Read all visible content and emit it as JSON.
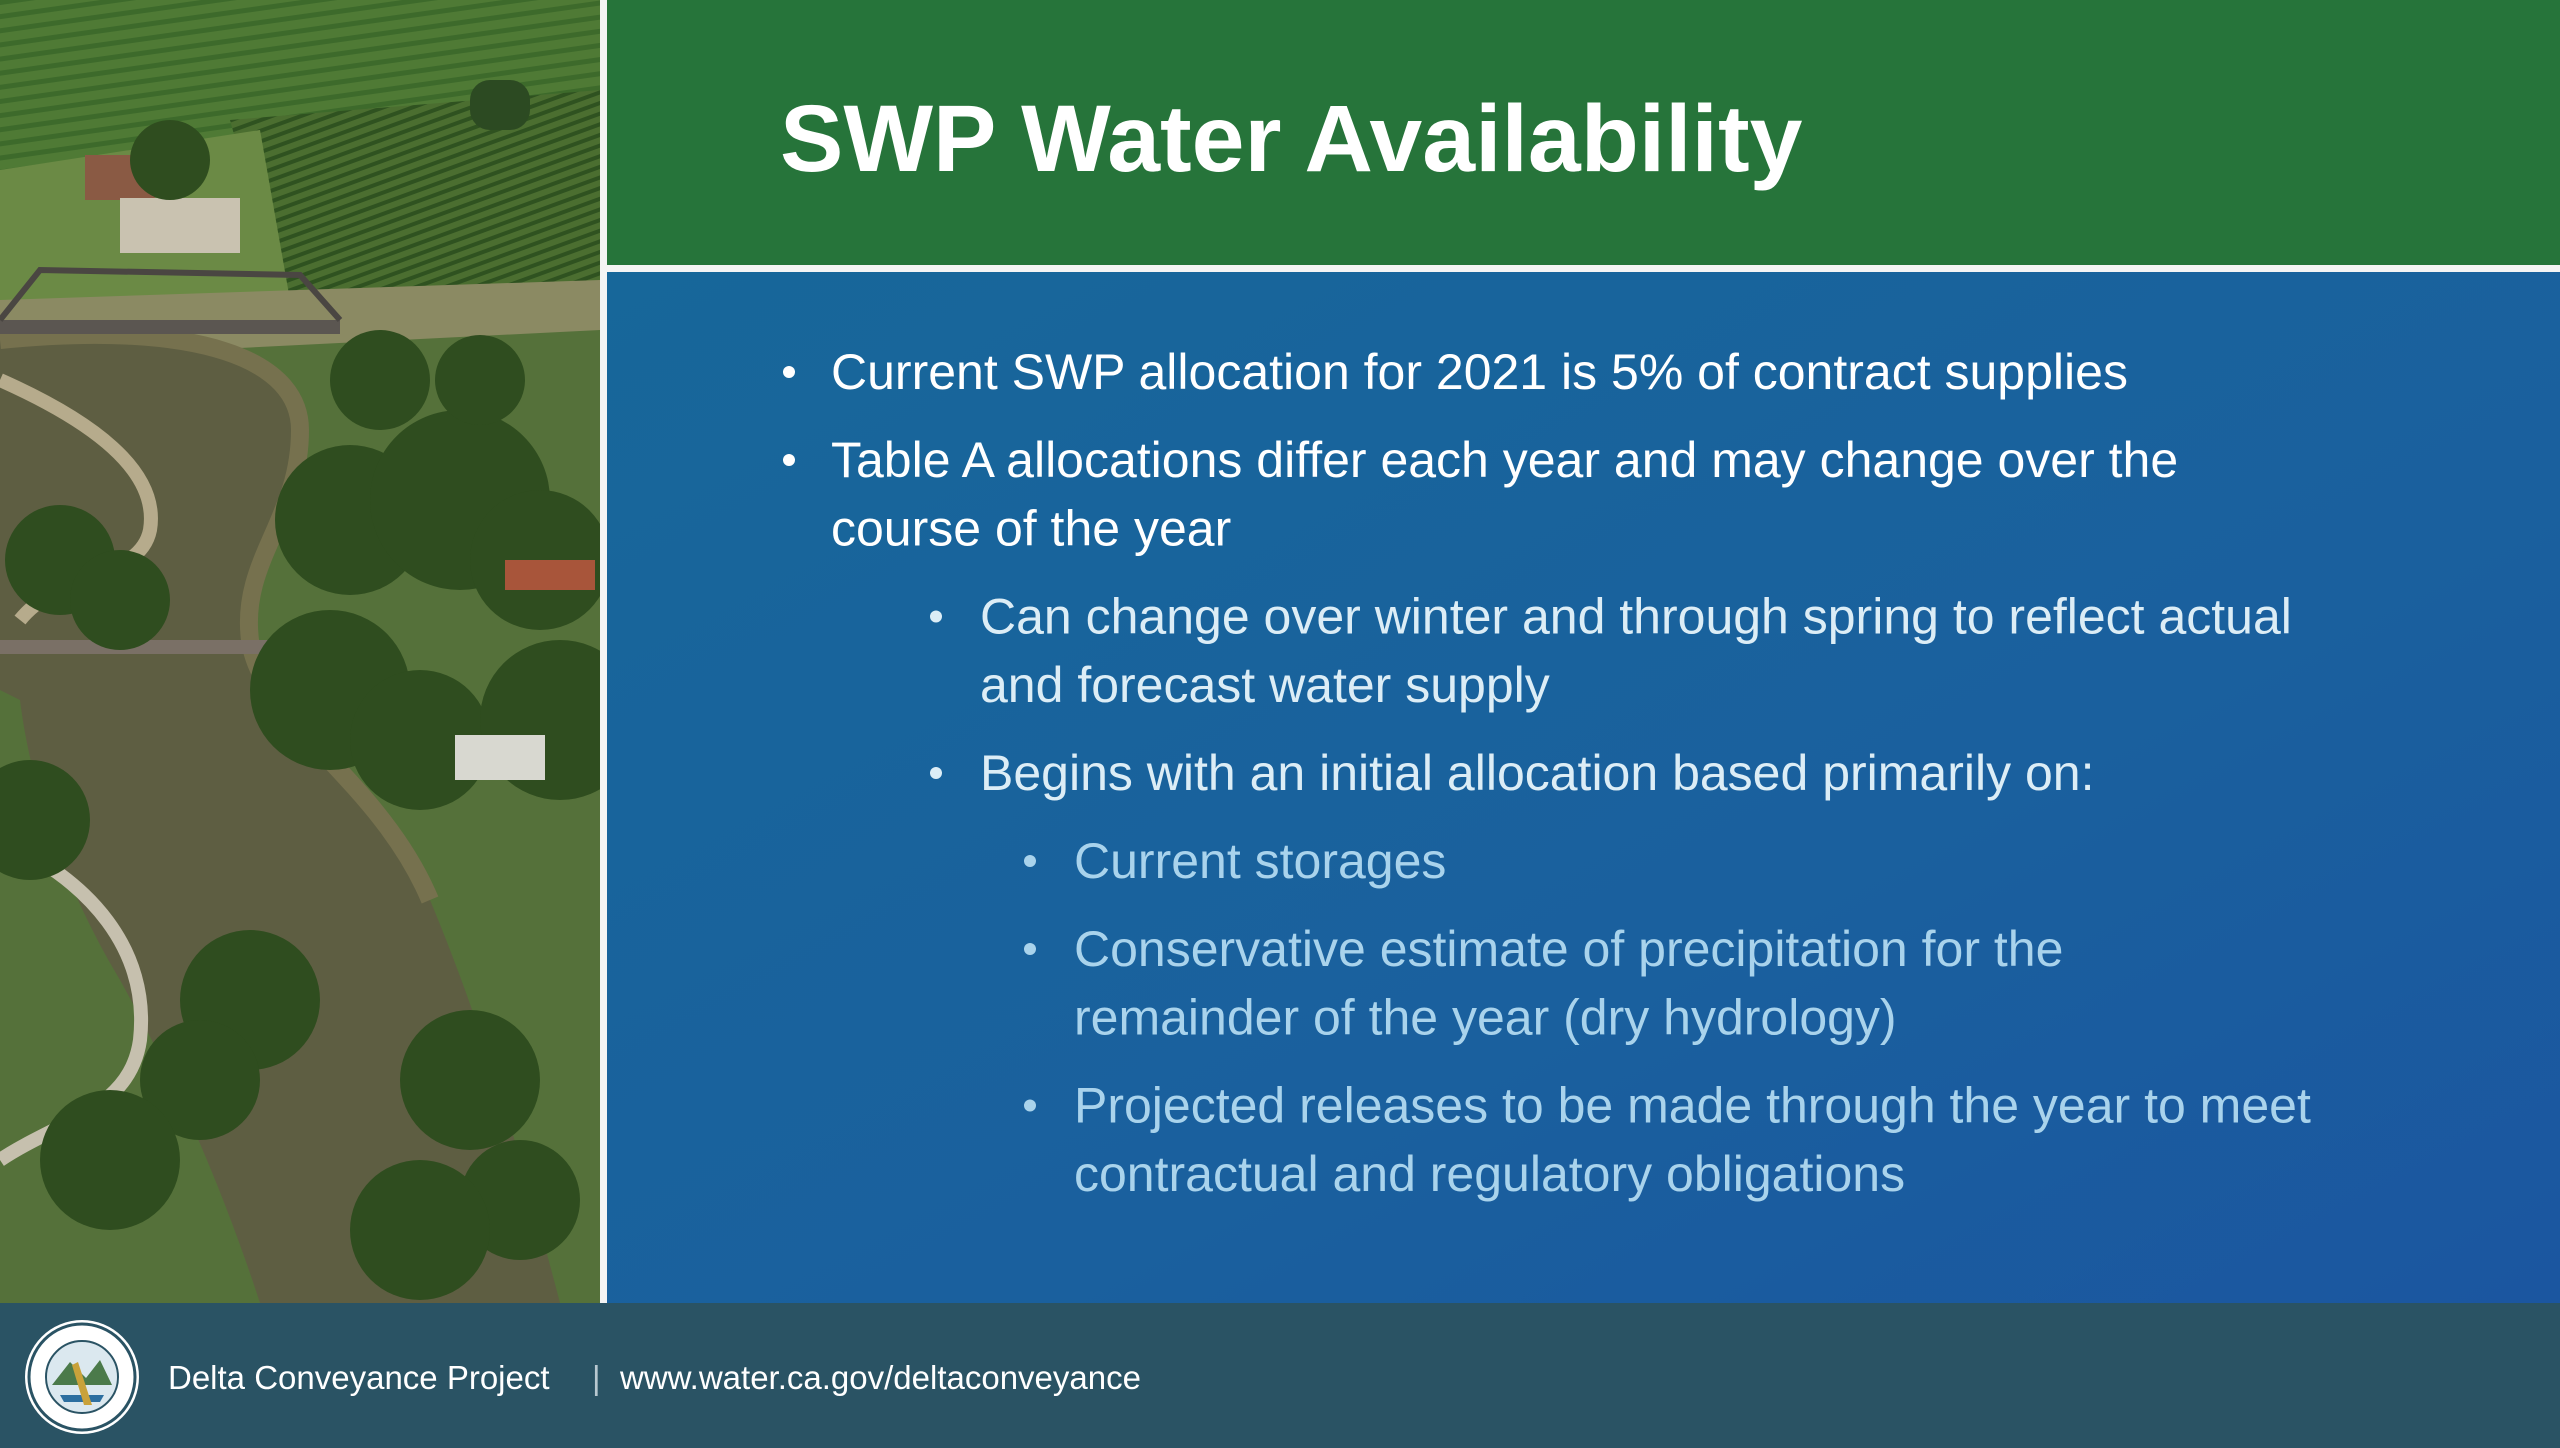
{
  "header": {
    "title": "SWP Water Availability"
  },
  "bullets": [
    {
      "lines": [
        "Current SWP allocation for 2021 is 5% of contract supplies"
      ]
    },
    {
      "lines": [
        "Table A allocations differ each year and may change over the",
        "course of the year"
      ],
      "sub": [
        {
          "lines": [
            "Can change over winter and through spring to reflect actual",
            "and forecast water supply"
          ]
        },
        {
          "lines": [
            "Begins with an initial allocation based primarily on:"
          ],
          "sub": [
            {
              "lines": [
                "Current storages"
              ]
            },
            {
              "lines": [
                "Conservative estimate of precipitation for the",
                "remainder of the year (dry hydrology)"
              ]
            },
            {
              "lines": [
                "Projected releases to be made through the year to meet",
                "contractual and regulatory obligations"
              ]
            }
          ]
        }
      ]
    }
  ],
  "footer": {
    "project": "Delta Conveyance Project",
    "separator": "|",
    "url": "www.water.ca.gov/deltaconveyance"
  }
}
